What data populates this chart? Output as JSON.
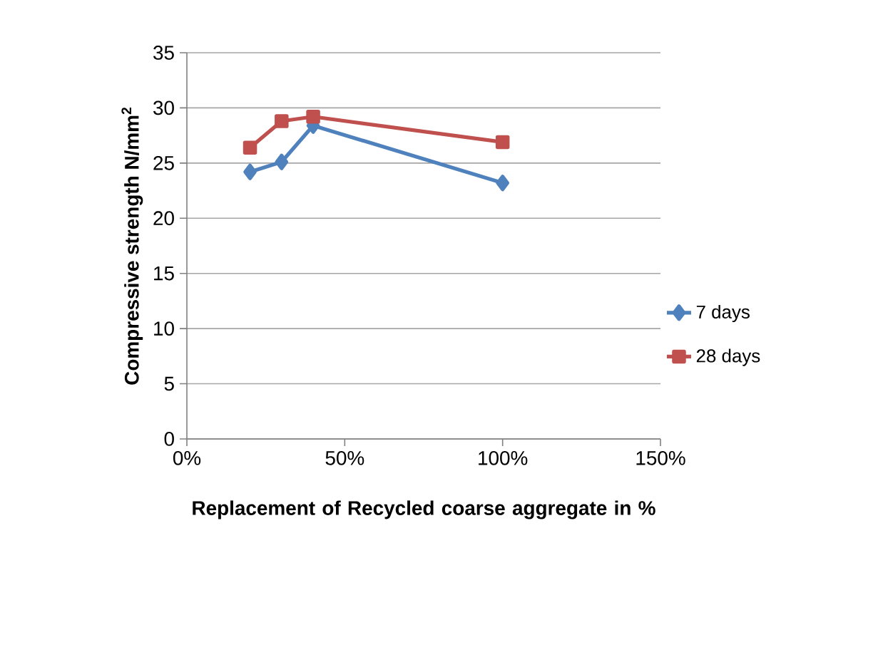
{
  "chart_data": {
    "type": "line",
    "xlabel": "Replacement of Recycled coarse aggregate in %",
    "ylabel": "Compressive strength N/mm$^{2}$",
    "x": [
      20,
      30,
      40,
      100
    ],
    "series": [
      {
        "name": "7 days",
        "color": "#4f81bd",
        "values": [
          24.2,
          25.1,
          28.4,
          23.2
        ],
        "marker": "diamond"
      },
      {
        "name": "28 days",
        "color": "#c0504d",
        "values": [
          26.4,
          28.8,
          29.2,
          26.9
        ],
        "marker": "square"
      }
    ],
    "xlim": [
      0,
      150
    ],
    "xticks": [
      {
        "value": 0,
        "label": "0%"
      },
      {
        "value": 50,
        "label": "50%"
      },
      {
        "value": 100,
        "label": "100%"
      },
      {
        "value": 150,
        "label": "150%"
      }
    ],
    "ylim": [
      0,
      35
    ],
    "yticks": [
      0,
      5,
      10,
      15,
      20,
      25,
      30,
      35
    ],
    "grid": "y",
    "legend": "right",
    "line_style": "solid"
  }
}
